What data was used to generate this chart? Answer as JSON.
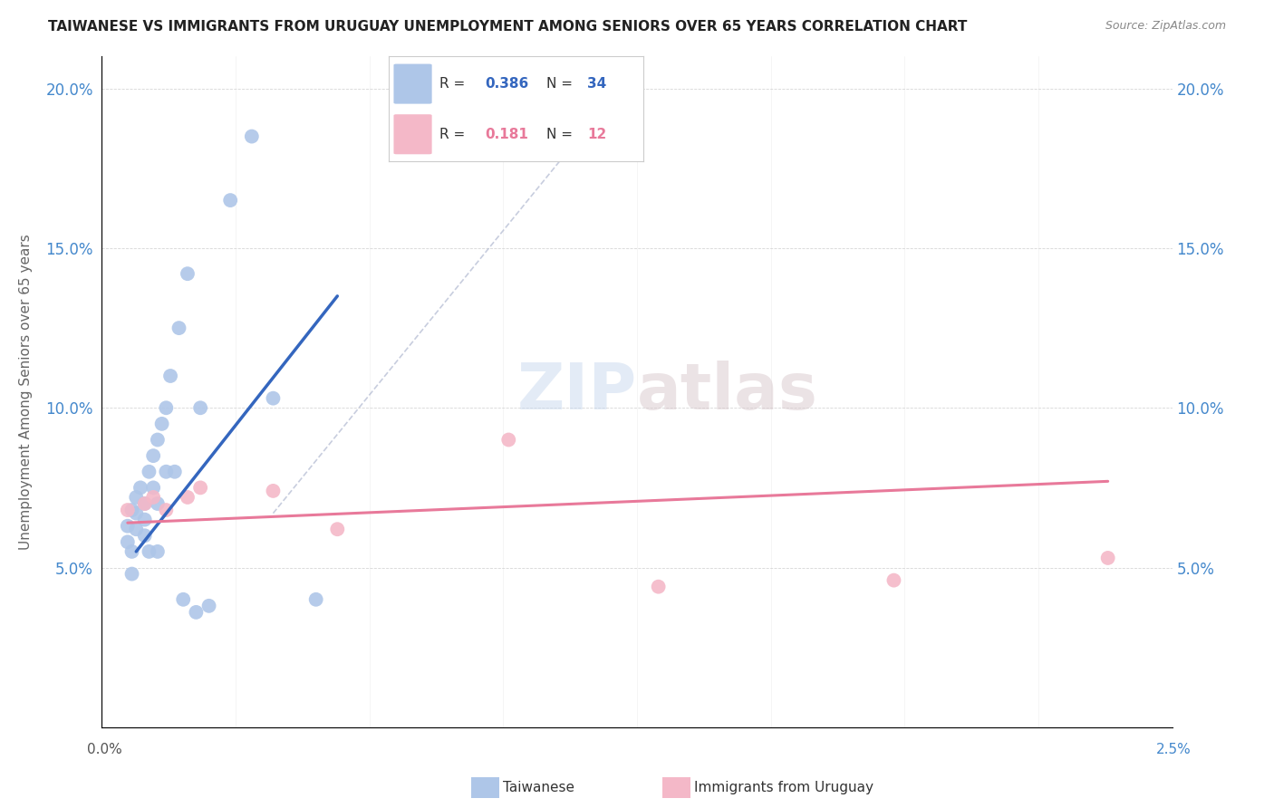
{
  "title": "TAIWANESE VS IMMIGRANTS FROM URUGUAY UNEMPLOYMENT AMONG SENIORS OVER 65 YEARS CORRELATION CHART",
  "source": "Source: ZipAtlas.com",
  "ylabel": "Unemployment Among Seniors over 65 years",
  "xlim": [
    0.0,
    0.025
  ],
  "ylim": [
    0.0,
    0.21
  ],
  "yticks": [
    0.05,
    0.1,
    0.15,
    0.2
  ],
  "ytick_labels": [
    "5.0%",
    "10.0%",
    "15.0%",
    "20.0%"
  ],
  "xtick_left": "0.0%",
  "xtick_right": "2.5%",
  "legend_r_taiwan": "0.386",
  "legend_n_taiwan": "34",
  "legend_r_uruguay": "0.181",
  "legend_n_uruguay": "12",
  "taiwanese_color": "#aec6e8",
  "uruguay_color": "#f4b8c8",
  "taiwan_line_color": "#3466be",
  "uruguay_line_color": "#e8799a",
  "watermark_zip": "ZIP",
  "watermark_atlas": "atlas",
  "background_color": "#ffffff",
  "taiwan_x": [
    0.0006,
    0.0006,
    0.0007,
    0.0007,
    0.0007,
    0.0008,
    0.0008,
    0.0008,
    0.0009,
    0.001,
    0.001,
    0.001,
    0.0011,
    0.0011,
    0.0012,
    0.0012,
    0.0013,
    0.0013,
    0.0013,
    0.0014,
    0.0015,
    0.0015,
    0.0016,
    0.0017,
    0.0018,
    0.0019,
    0.002,
    0.0022,
    0.0023,
    0.0025,
    0.003,
    0.0035,
    0.004,
    0.005
  ],
  "taiwan_y": [
    0.063,
    0.058,
    0.068,
    0.055,
    0.048,
    0.072,
    0.067,
    0.062,
    0.075,
    0.07,
    0.065,
    0.06,
    0.08,
    0.055,
    0.085,
    0.075,
    0.09,
    0.07,
    0.055,
    0.095,
    0.1,
    0.08,
    0.11,
    0.08,
    0.125,
    0.04,
    0.142,
    0.036,
    0.1,
    0.038,
    0.165,
    0.185,
    0.103,
    0.04
  ],
  "uruguay_x": [
    0.0006,
    0.001,
    0.0012,
    0.0015,
    0.002,
    0.0023,
    0.004,
    0.0055,
    0.0095,
    0.013,
    0.0185,
    0.0235
  ],
  "uruguay_y": [
    0.068,
    0.07,
    0.072,
    0.068,
    0.072,
    0.075,
    0.074,
    0.062,
    0.09,
    0.044,
    0.046,
    0.053
  ],
  "taiwan_line_x": [
    0.0008,
    0.0055
  ],
  "taiwan_line_y": [
    0.055,
    0.135
  ],
  "uruguay_line_x": [
    0.0006,
    0.0235
  ],
  "uruguay_line_y": [
    0.064,
    0.077
  ],
  "dash_line_x": [
    0.004,
    0.0125
  ],
  "dash_line_y": [
    0.067,
    0.207
  ]
}
